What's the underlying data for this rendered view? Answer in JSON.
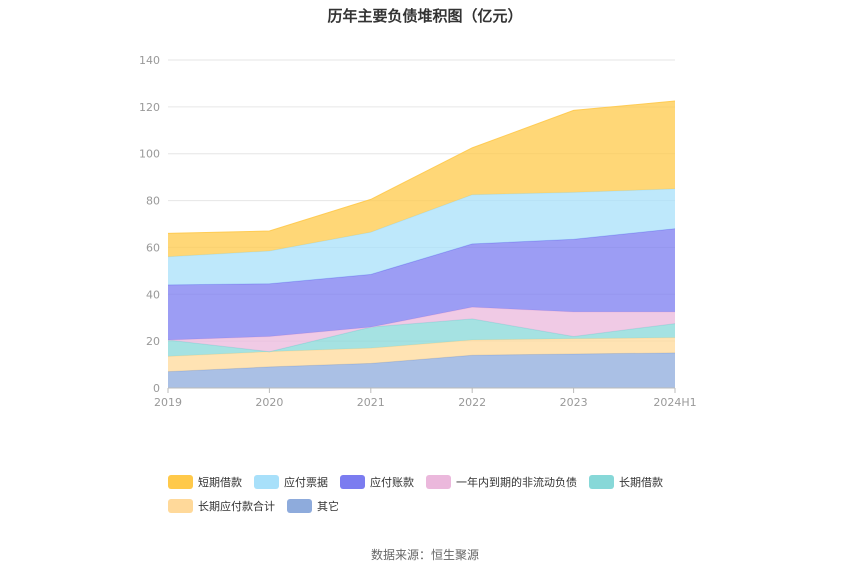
{
  "chart_data": {
    "type": "area",
    "stacked": true,
    "title": "历年主要负债堆积图（亿元）",
    "categories": [
      "2019",
      "2020",
      "2021",
      "2022",
      "2023",
      "2024H1"
    ],
    "ylim": [
      0,
      140
    ],
    "yticks": [
      0,
      20,
      40,
      60,
      80,
      100,
      120,
      140
    ],
    "grid": true,
    "legend_position": "bottom",
    "series": [
      {
        "name": "其它",
        "color": "#8eabdc",
        "values": [
          7,
          9,
          10.5,
          14,
          14.5,
          15
        ]
      },
      {
        "name": "长期应付款合计",
        "color": "#ffd99a",
        "values": [
          6.5,
          6.5,
          6.5,
          6.5,
          6.5,
          6.5
        ]
      },
      {
        "name": "长期借款",
        "color": "#87d8d8",
        "values": [
          7,
          0,
          9,
          9,
          1,
          6
        ]
      },
      {
        "name": "一年内到期的非流动负债",
        "color": "#ebb8dc",
        "values": [
          0,
          6.5,
          0,
          5,
          10.5,
          5
        ]
      },
      {
        "name": "应付账款",
        "color": "#7b7cf0",
        "values": [
          23.5,
          22.5,
          22.5,
          27,
          31,
          35.5
        ]
      },
      {
        "name": "应付票据",
        "color": "#a8e0fa",
        "values": [
          12,
          14,
          18,
          21,
          20,
          17
        ]
      },
      {
        "name": "短期借款",
        "color": "#ffc94a",
        "values": [
          10,
          8.5,
          14,
          20,
          35,
          37.5
        ]
      }
    ],
    "legend_order": [
      "短期借款",
      "应付票据",
      "应付账款",
      "一年内到期的非流动负债",
      "长期借款",
      "长期应付款合计",
      "其它"
    ]
  },
  "source": "数据来源：恒生聚源"
}
